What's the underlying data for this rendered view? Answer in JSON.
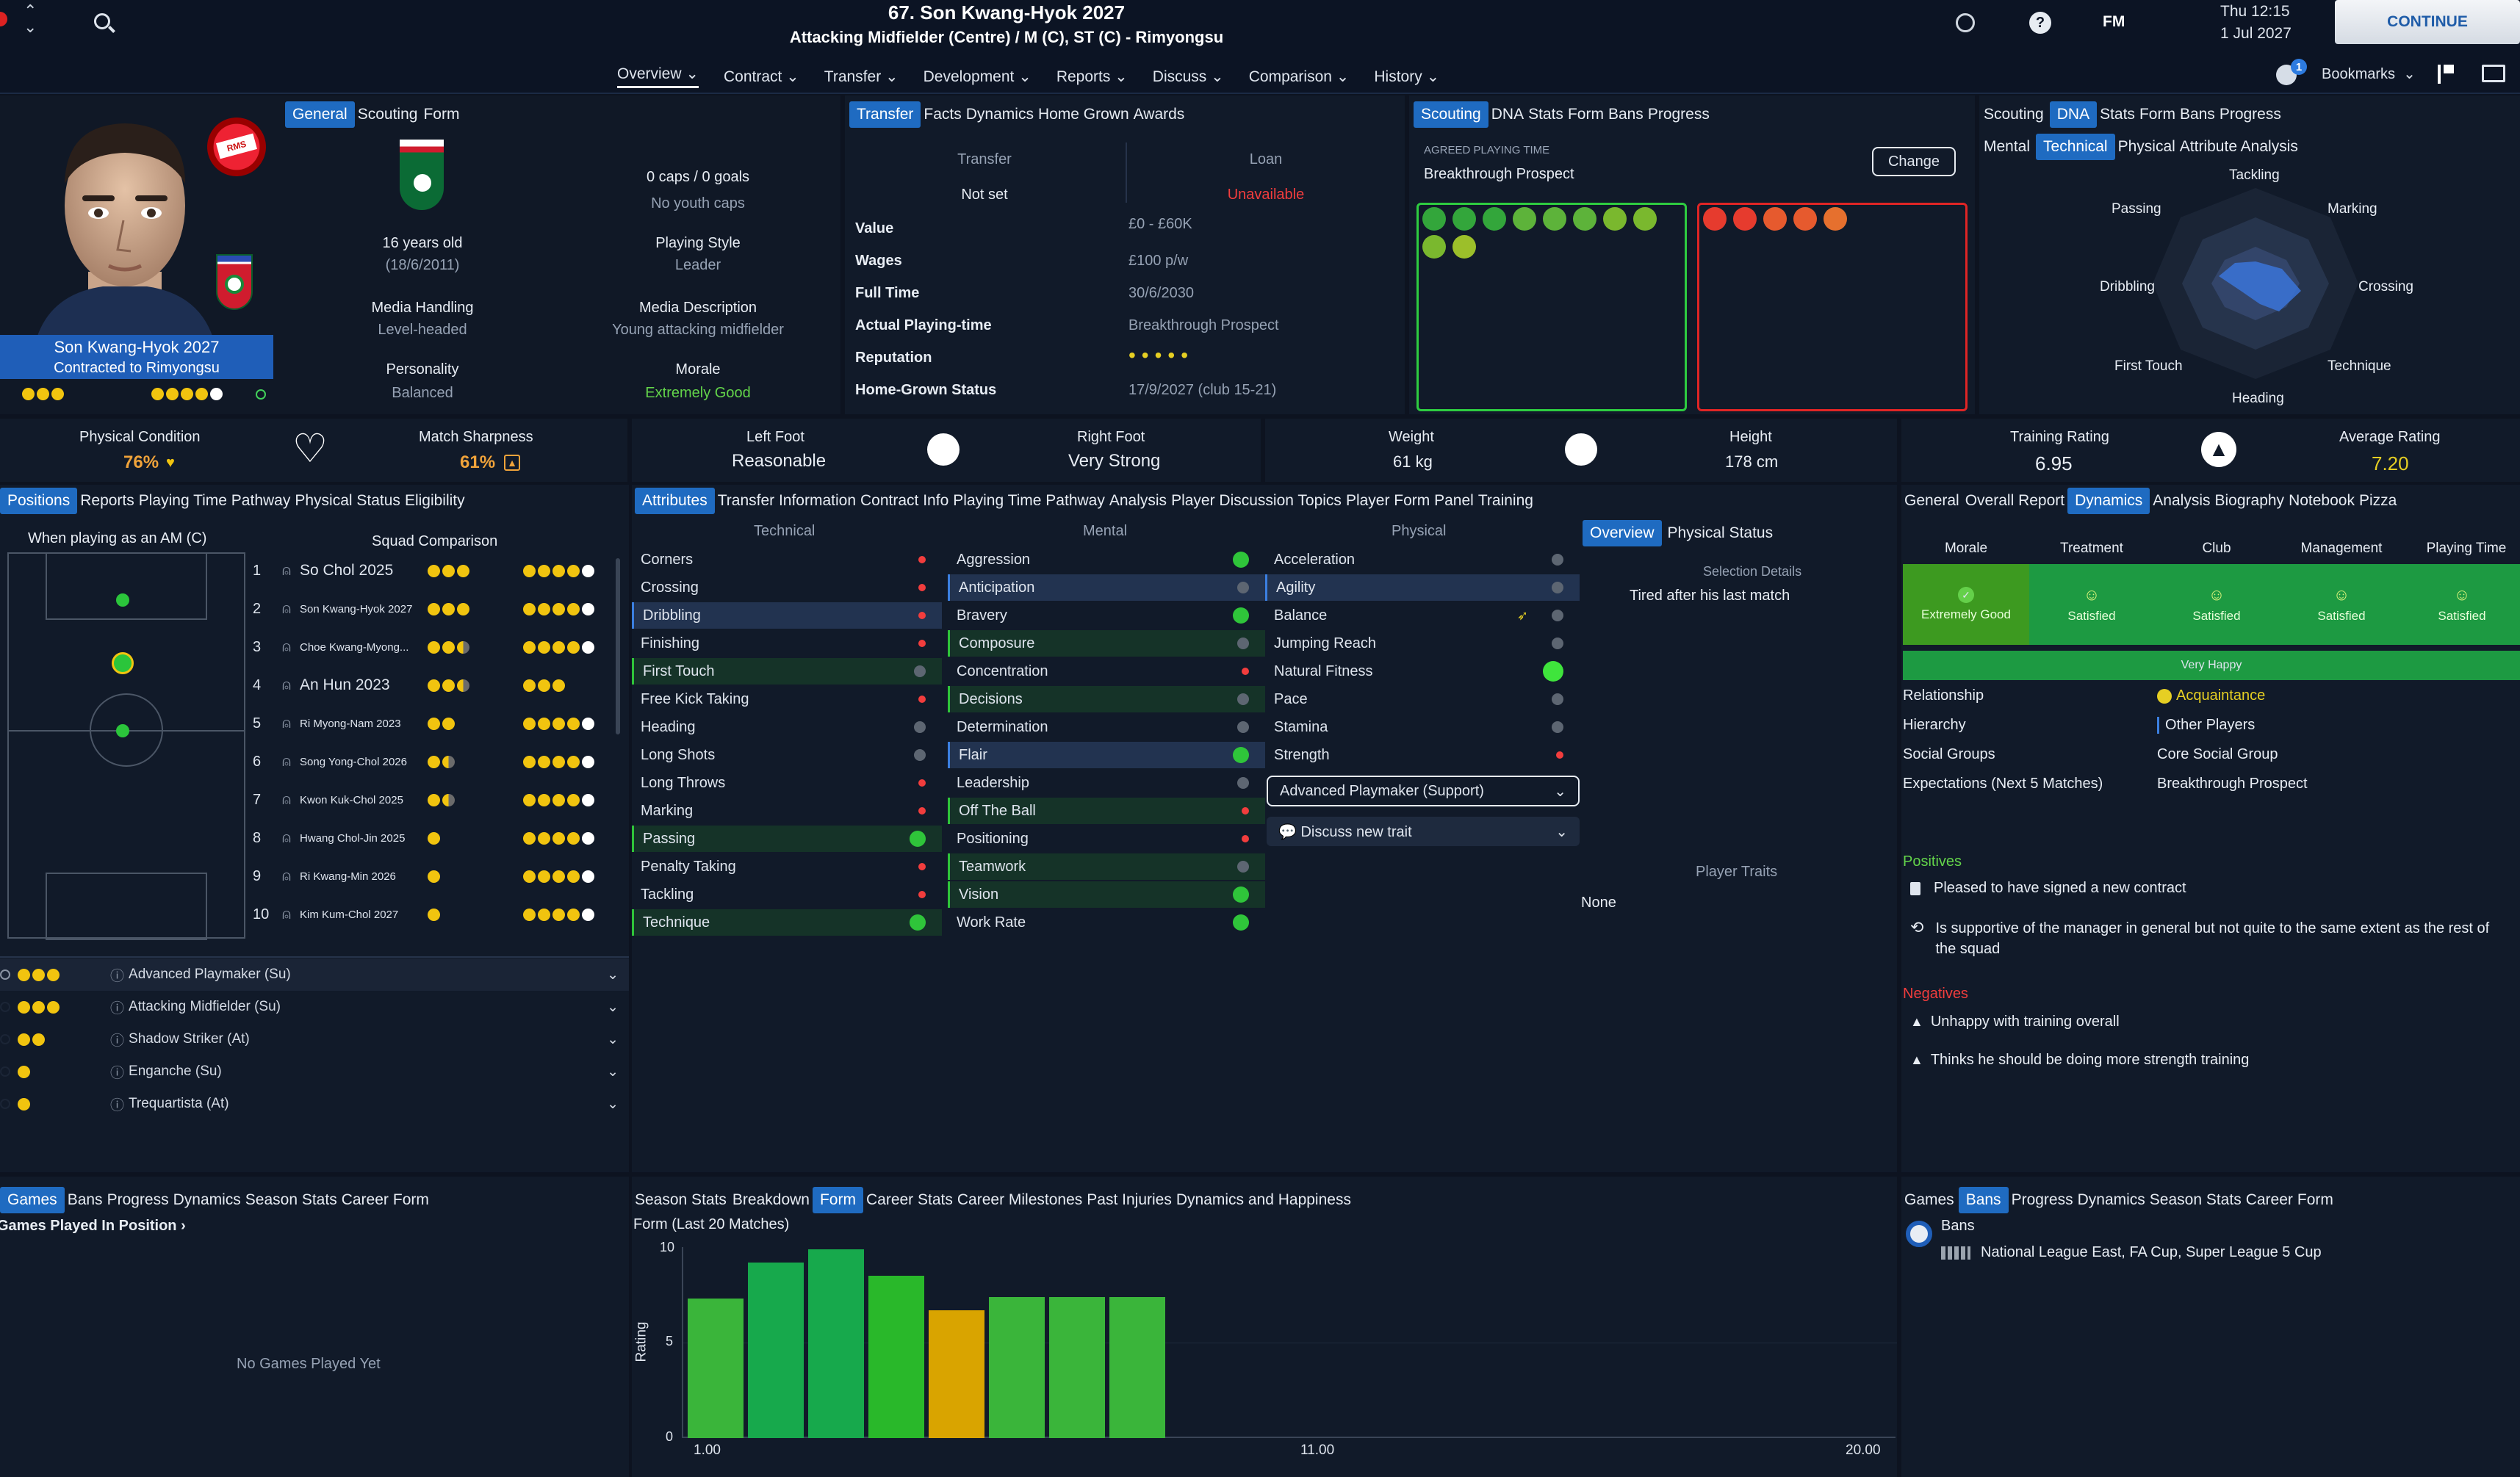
{
  "header": {
    "title": "67. Son Kwang-Hyok 2027",
    "subtitle": "Attacking Midfielder (Centre) / M (C), ST (C) - Rimyongsu",
    "date_time": "Thu 12:15",
    "date": "1 Jul 2027",
    "continue_label": "CONTINUE",
    "fm_label": "FM",
    "bookmarks_label": "Bookmarks",
    "bookmarks_badge": "1",
    "nav": [
      {
        "label": "Overview",
        "active": true
      },
      {
        "label": "Contract"
      },
      {
        "label": "Transfer"
      },
      {
        "label": "Development"
      },
      {
        "label": "Reports"
      },
      {
        "label": "Discuss"
      },
      {
        "label": "Comparison"
      },
      {
        "label": "History"
      }
    ]
  },
  "profile": {
    "name_line1": "Son Kwang-Hyok 2027",
    "name_line2": "Contracted to Rimyongsu",
    "general_tabs": [
      "General",
      "Scouting",
      "Form"
    ],
    "age": "16 years old",
    "dob": "(18/6/2011)",
    "caps": "0 caps / 0 goals",
    "youth_caps": "No youth caps",
    "playing_style_label": "Playing Style",
    "playing_style": "Leader",
    "media_handling_label": "Media Handling",
    "media_handling": "Level-headed",
    "media_desc_label": "Media Description",
    "media_desc": "Young attacking midfielder",
    "personality_label": "Personality",
    "personality": "Balanced",
    "morale_label": "Morale",
    "morale": "Extremely Good"
  },
  "transfer": {
    "tabs": [
      "Transfer",
      "Facts",
      "Dynamics",
      "Home Grown",
      "Awards"
    ],
    "transfer_label": "Transfer",
    "transfer_value": "Not set",
    "loan_label": "Loan",
    "loan_value": "Unavailable",
    "rows": [
      {
        "label": "Value",
        "value": "£0 - £60K"
      },
      {
        "label": "Wages",
        "value": "£100 p/w"
      },
      {
        "label": "Full Time",
        "value": "30/6/2030"
      },
      {
        "label": "Actual Playing-time",
        "value": "Breakthrough Prospect"
      },
      {
        "label": "Reputation",
        "value": "•••••"
      },
      {
        "label": "Home-Grown Status",
        "value": "17/9/2027 (club 15-21)"
      }
    ]
  },
  "scouting": {
    "tabs": [
      "Scouting",
      "DNA",
      "Stats",
      "Form",
      "Bans",
      "Progress"
    ],
    "agreed_label": "AGREED PLAYING TIME",
    "agreed_value": "Breakthrough Prospect",
    "change_label": "Change"
  },
  "dna": {
    "tabs": [
      "Scouting",
      "DNA",
      "Stats",
      "Form",
      "Bans",
      "Progress"
    ],
    "subtabs": [
      "Mental",
      "Technical",
      "Physical",
      "Attribute Analysis"
    ],
    "axes": [
      "Tackling",
      "Marking",
      "Crossing",
      "Technique",
      "Heading",
      "First Touch",
      "Dribbling",
      "Passing"
    ]
  },
  "status_bar": {
    "physical_condition_label": "Physical Condition",
    "physical_condition": "76%",
    "match_sharpness_label": "Match Sharpness",
    "match_sharpness": "61%",
    "left_foot_label": "Left Foot",
    "left_foot": "Reasonable",
    "right_foot_label": "Right Foot",
    "right_foot": "Very Strong",
    "weight_label": "Weight",
    "weight": "61 kg",
    "height_label": "Height",
    "height": "178 cm",
    "training_rating_label": "Training Rating",
    "training_rating": "6.95",
    "average_rating_label": "Average Rating",
    "average_rating": "7.20"
  },
  "positions": {
    "tabs": [
      "Positions",
      "Reports",
      "Playing Time Pathway",
      "Physical Status",
      "Eligibility"
    ],
    "when_playing": "When playing as an AM (C)",
    "squad_comparison": "Squad Comparison",
    "squad": [
      {
        "n": "1",
        "name": "So Chol 2025"
      },
      {
        "n": "2",
        "name": "Son Kwang-Hyok 2027"
      },
      {
        "n": "3",
        "name": "Choe Kwang-Myong..."
      },
      {
        "n": "4",
        "name": "An Hun 2023"
      },
      {
        "n": "5",
        "name": "Ri Myong-Nam 2023"
      },
      {
        "n": "6",
        "name": "Song Yong-Chol 2026"
      },
      {
        "n": "7",
        "name": "Kwon Kuk-Chol 2025"
      },
      {
        "n": "8",
        "name": "Hwang Chol-Jin 2025"
      },
      {
        "n": "9",
        "name": "Ri Kwang-Min 2026"
      },
      {
        "n": "10",
        "name": "Kim Kum-Chol 2027"
      }
    ],
    "roles": [
      "Advanced Playmaker (Su)",
      "Attacking Midfielder (Su)",
      "Shadow Striker (At)",
      "Enganche (Su)",
      "Trequartista (At)"
    ]
  },
  "attributes": {
    "tabs": [
      "Attributes",
      "Transfer Information",
      "Contract Info",
      "Playing Time Pathway",
      "Analysis",
      "Player Discussion Topics",
      "Player Form Panel",
      "Training"
    ],
    "technical_label": "Technical",
    "mental_label": "Mental",
    "physical_label": "Physical",
    "technical": [
      "Corners",
      "Crossing",
      "Dribbling",
      "Finishing",
      "First Touch",
      "Free Kick Taking",
      "Heading",
      "Long Shots",
      "Long Throws",
      "Marking",
      "Passing",
      "Penalty Taking",
      "Tackling",
      "Technique"
    ],
    "mental": [
      "Aggression",
      "Anticipation",
      "Bravery",
      "Composure",
      "Concentration",
      "Decisions",
      "Determination",
      "Flair",
      "Leadership",
      "Off The Ball",
      "Positioning",
      "Teamwork",
      "Vision",
      "Work Rate"
    ],
    "physical": [
      "Acceleration",
      "Agility",
      "Balance",
      "Jumping Reach",
      "Natural Fitness",
      "Pace",
      "Stamina",
      "Strength"
    ],
    "role_select": "Advanced Playmaker (Support)",
    "discuss_trait": "Discuss new trait"
  },
  "overview_side": {
    "tabs": [
      "Overview",
      "Physical Status"
    ],
    "selection_details_label": "Selection Details",
    "selection_details": "Tired after his last match",
    "player_traits_label": "Player Traits",
    "player_traits": "None"
  },
  "dynamics": {
    "tabs": [
      "General",
      "Overall Report",
      "Dynamics",
      "Analysis",
      "Biography",
      "Notebook",
      "Pizza"
    ],
    "columns": [
      {
        "label": "Morale",
        "value": "Extremely Good"
      },
      {
        "label": "Treatment",
        "value": "Satisfied"
      },
      {
        "label": "Club",
        "value": "Satisfied"
      },
      {
        "label": "Management",
        "value": "Satisfied"
      },
      {
        "label": "Playing Time",
        "value": "Satisfied"
      }
    ],
    "happiness": "Very Happy",
    "details": [
      {
        "label": "Relationship",
        "value": "Acquaintance"
      },
      {
        "label": "Hierarchy",
        "value": "Other Players"
      },
      {
        "label": "Social Groups",
        "value": "Core Social Group"
      },
      {
        "label": "Expectations (Next 5 Matches)",
        "value": "Breakthrough Prospect"
      }
    ],
    "positives_label": "Positives",
    "positives": [
      "Pleased to have signed a new contract",
      "Is supportive of the manager in general but not quite to the same extent as the rest of the squad"
    ],
    "negatives_label": "Negatives",
    "negatives": [
      "Unhappy with training overall",
      "Thinks he should be doing more strength training"
    ]
  },
  "games": {
    "tabs": [
      "Games",
      "Bans",
      "Progress",
      "Dynamics",
      "Season Stats",
      "Career",
      "Form"
    ],
    "games_played_label": "Games Played In Position",
    "no_games": "No Games Played Yet"
  },
  "form": {
    "tabs": [
      "Season Stats",
      "Breakdown",
      "Form",
      "Career Stats",
      "Career Milestones",
      "Past Injuries",
      "Dynamics and Happiness"
    ],
    "title": "Form (Last 20 Matches)"
  },
  "bans": {
    "tabs": [
      "Games",
      "Bans",
      "Progress",
      "Dynamics",
      "Season Stats",
      "Career",
      "Form"
    ],
    "bans_label": "Bans",
    "competitions": "National League East, FA Cup, Super League 5 Cup"
  },
  "chart_data": {
    "type": "bar",
    "title": "Form (Last 20 Matches)",
    "ylabel": "Rating",
    "ylim": [
      0,
      10
    ],
    "yticks": [
      "0",
      "5",
      "10"
    ],
    "xticks": [
      "1.00",
      "11.00",
      "20.00"
    ],
    "values": [
      7.3,
      9.2,
      9.9,
      8.5,
      6.7,
      7.4,
      7.4,
      7.4
    ],
    "colors": [
      "#3ab53a",
      "#17a94c",
      "#17a94c",
      "#29b82a",
      "#d9a400",
      "#3ab53a",
      "#3ab53a",
      "#3ab53a"
    ]
  }
}
